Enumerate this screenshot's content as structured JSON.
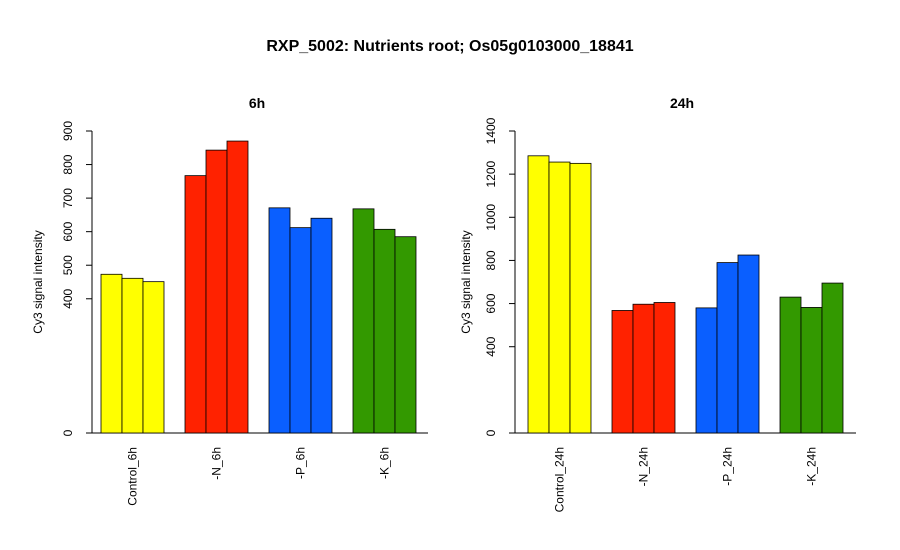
{
  "title": "RXP_5002: Nutrients root; Os05g0103000_18841",
  "chart_data": [
    {
      "type": "bar",
      "title": "6h",
      "ylabel": "Cy3 signal intensity",
      "xlabel": "",
      "ylim": [
        0,
        900
      ],
      "yticks": [
        0,
        400,
        500,
        600,
        700,
        800,
        900
      ],
      "categories": [
        "Control_6h",
        "-N_6h",
        "-P_6h",
        "-K_6h"
      ],
      "colors": [
        "#ffff00",
        "#ff2200",
        "#0a5fff",
        "#339900"
      ],
      "values": [
        [
          473,
          461,
          451
        ],
        [
          767,
          843,
          870
        ],
        [
          671,
          612,
          640
        ],
        [
          668,
          607,
          585
        ]
      ]
    },
    {
      "type": "bar",
      "title": "24h",
      "ylabel": "Cy3 signal intensity",
      "xlabel": "",
      "ylim": [
        0,
        1400
      ],
      "yticks": [
        0,
        400,
        600,
        800,
        1000,
        1200,
        1400
      ],
      "categories": [
        "Control_24h",
        "-N_24h",
        "-P_24h",
        "-K_24h"
      ],
      "colors": [
        "#ffff00",
        "#ff2200",
        "#0a5fff",
        "#339900"
      ],
      "values": [
        [
          1285,
          1256,
          1250
        ],
        [
          568,
          597,
          605
        ],
        [
          580,
          790,
          825
        ],
        [
          630,
          582,
          695
        ]
      ]
    }
  ]
}
